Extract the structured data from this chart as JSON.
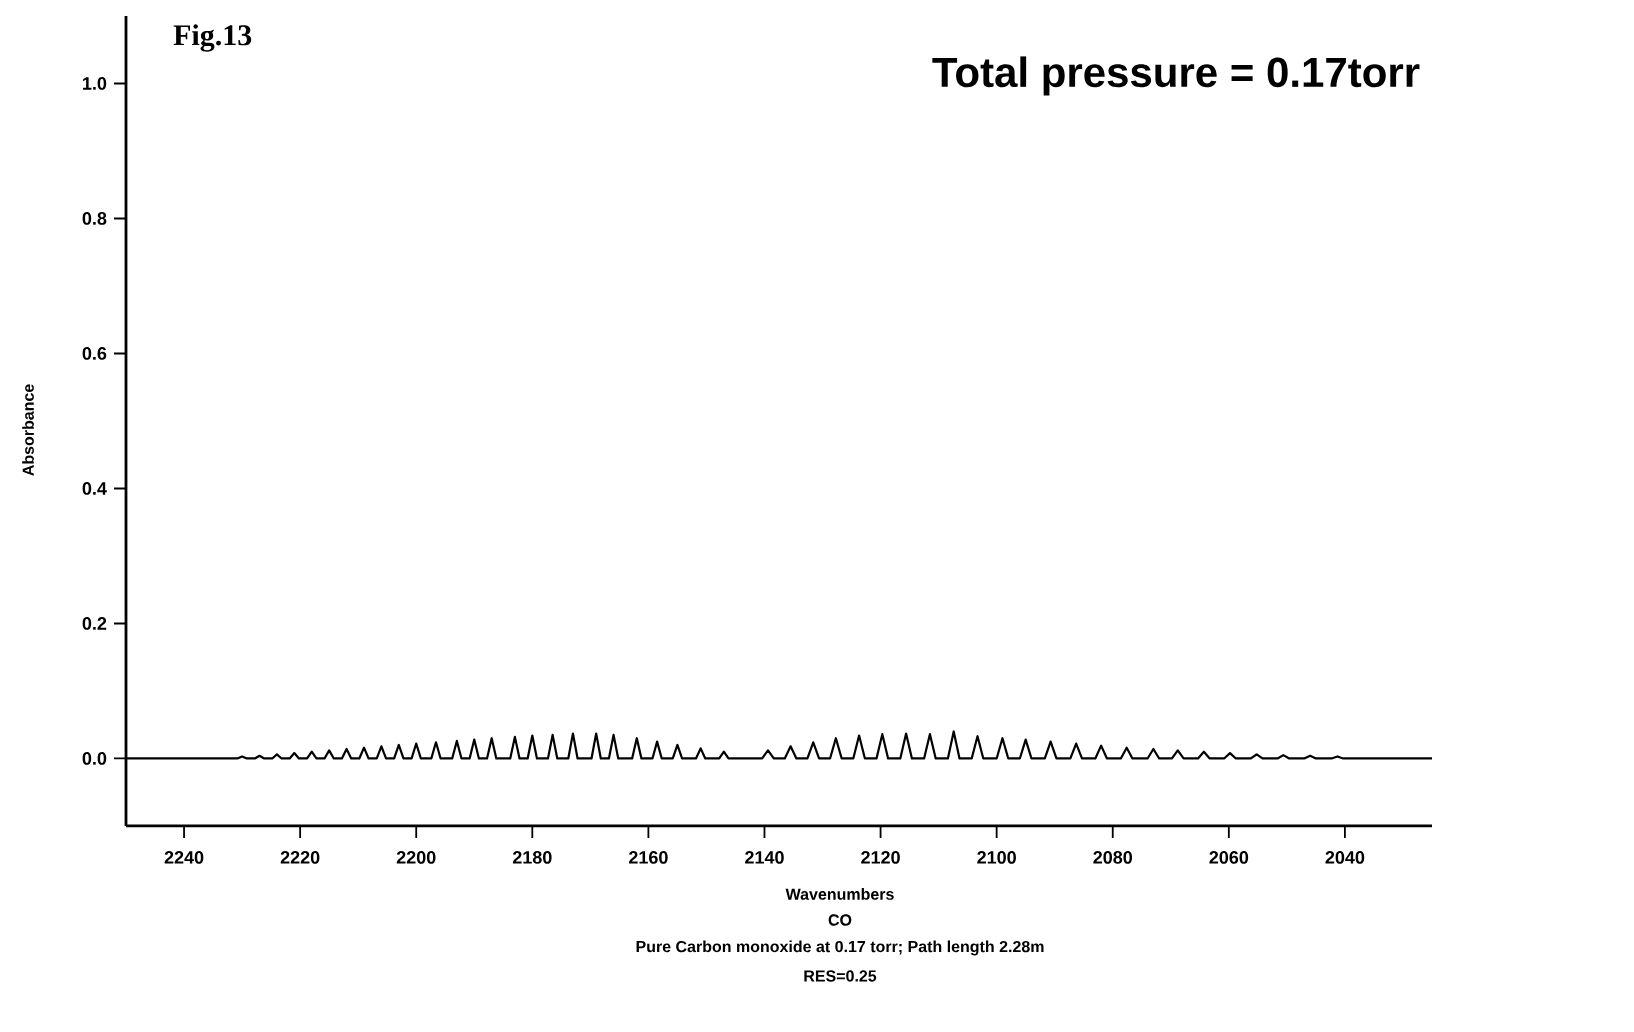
{
  "chart_data": {
    "type": "line",
    "title": "Fig.13",
    "subtitle": "Total pressure = 0.17torr",
    "xlabel": "Wavenumbers",
    "ylabel": "Absorbance",
    "annotations": [
      "CO",
      "Pure Carbon monoxide at 0.17 torr; Path length 2.28m",
      "RES=0.25"
    ],
    "x": [
      2250,
      2230.8,
      2230,
      2229.2,
      2227.8,
      2227,
      2226.2,
      2224.8,
      2224,
      2223.2,
      2221.8,
      2221,
      2220.2,
      2218.8,
      2218,
      2217.2,
      2215.8,
      2215,
      2214.2,
      2212.8,
      2212,
      2211.2,
      2209.8,
      2209,
      2208.2,
      2206.8,
      2206,
      2205.2,
      2203.8,
      2203,
      2202.2,
      2200.8,
      2200,
      2199.2,
      2197.4,
      2196.6,
      2195.8,
      2193.8,
      2193,
      2192.2,
      2190.8,
      2190,
      2189.2,
      2187.8,
      2187,
      2186.2,
      2183.8,
      2183,
      2182.2,
      2180.8,
      2180,
      2179.2,
      2177.3,
      2176.5,
      2175.7,
      2173.8,
      2173,
      2172.2,
      2169.8,
      2169,
      2168.2,
      2166.8,
      2166,
      2165.2,
      2162.8,
      2162,
      2161.2,
      2159.3,
      2158.5,
      2157.7,
      2155.8,
      2155,
      2154.2,
      2151.8,
      2151,
      2150.2,
      2147.8,
      2147,
      2146.2,
      2140.4,
      2139.4,
      2138.4,
      2136.5,
      2135.5,
      2134.5,
      2132.6,
      2131.6,
      2130.6,
      2128.7,
      2127.7,
      2126.7,
      2124.7,
      2123.7,
      2122.7,
      2120.7,
      2119.7,
      2118.7,
      2116.6,
      2115.6,
      2114.6,
      2112.5,
      2111.5,
      2110.5,
      2108.4,
      2107.4,
      2106.4,
      2104.3,
      2103.3,
      2102.3,
      2100,
      2099,
      2098,
      2096,
      2095,
      2094,
      2091.7,
      2090.7,
      2089.7,
      2087.3,
      2086.3,
      2085.3,
      2083,
      2082,
      2081,
      2078.6,
      2077.6,
      2076.6,
      2074,
      2073,
      2072,
      2069.8,
      2068.8,
      2067.8,
      2065.3,
      2064.3,
      2063.3,
      2060.8,
      2059.8,
      2058.8,
      2056.2,
      2055.2,
      2054.2,
      2051.6,
      2050.6,
      2049.6,
      2047,
      2046,
      2045,
      2042.3,
      2041.3,
      2040.3,
      2025
    ],
    "series": [
      {
        "color": "#000000",
        "values": [
          0,
          0,
          0.003,
          0,
          0,
          0.004,
          0,
          0,
          0.006,
          0,
          0,
          0.008,
          0,
          0,
          0.01,
          0,
          0,
          0.012,
          0,
          0,
          0.014,
          0,
          0,
          0.016,
          0,
          0,
          0.018,
          0,
          0,
          0.02,
          0,
          0,
          0.022,
          0,
          0,
          0.024,
          0,
          0,
          0.026,
          0,
          0,
          0.028,
          0,
          0,
          0.03,
          0,
          0,
          0.032,
          0,
          0,
          0.034,
          0,
          0,
          0.035,
          0,
          0,
          0.037,
          0,
          0,
          0.037,
          0,
          0,
          0.035,
          0,
          0,
          0.03,
          0,
          0,
          0.025,
          0,
          0,
          0.02,
          0,
          0,
          0.015,
          0,
          0,
          0.01,
          0,
          0,
          0.012,
          0,
          0,
          0.018,
          0,
          0,
          0.024,
          0,
          0,
          0.03,
          0,
          0,
          0.034,
          0,
          0,
          0.036,
          0,
          0,
          0.037,
          0,
          0,
          0.036,
          0,
          0,
          0.04,
          0,
          0,
          0.033,
          0,
          0,
          0.03,
          0,
          0,
          0.028,
          0,
          0,
          0.025,
          0,
          0,
          0.022,
          0,
          0,
          0.019,
          0,
          0,
          0.016,
          0,
          0,
          0.014,
          0,
          0,
          0.012,
          0,
          0,
          0.01,
          0,
          0,
          0.008,
          0,
          0,
          0.006,
          0,
          0,
          0.005,
          0,
          0,
          0.004,
          0,
          0,
          0.003,
          0,
          0
        ]
      }
    ],
    "xlim": [
      2250,
      2025
    ],
    "ylim": [
      -0.1,
      1.1
    ],
    "xticks": [
      2240,
      2220,
      2200,
      2180,
      2160,
      2140,
      2120,
      2100,
      2080,
      2060,
      2040
    ],
    "yticks": [
      {
        "value": 0,
        "label": "0.0"
      },
      {
        "value": 0.2,
        "label": "0.2"
      },
      {
        "value": 0.4,
        "label": "0.4"
      },
      {
        "value": 0.6,
        "label": "0.6"
      },
      {
        "value": 0.8,
        "label": "0.8"
      },
      {
        "value": 1,
        "label": "1.0"
      }
    ]
  }
}
